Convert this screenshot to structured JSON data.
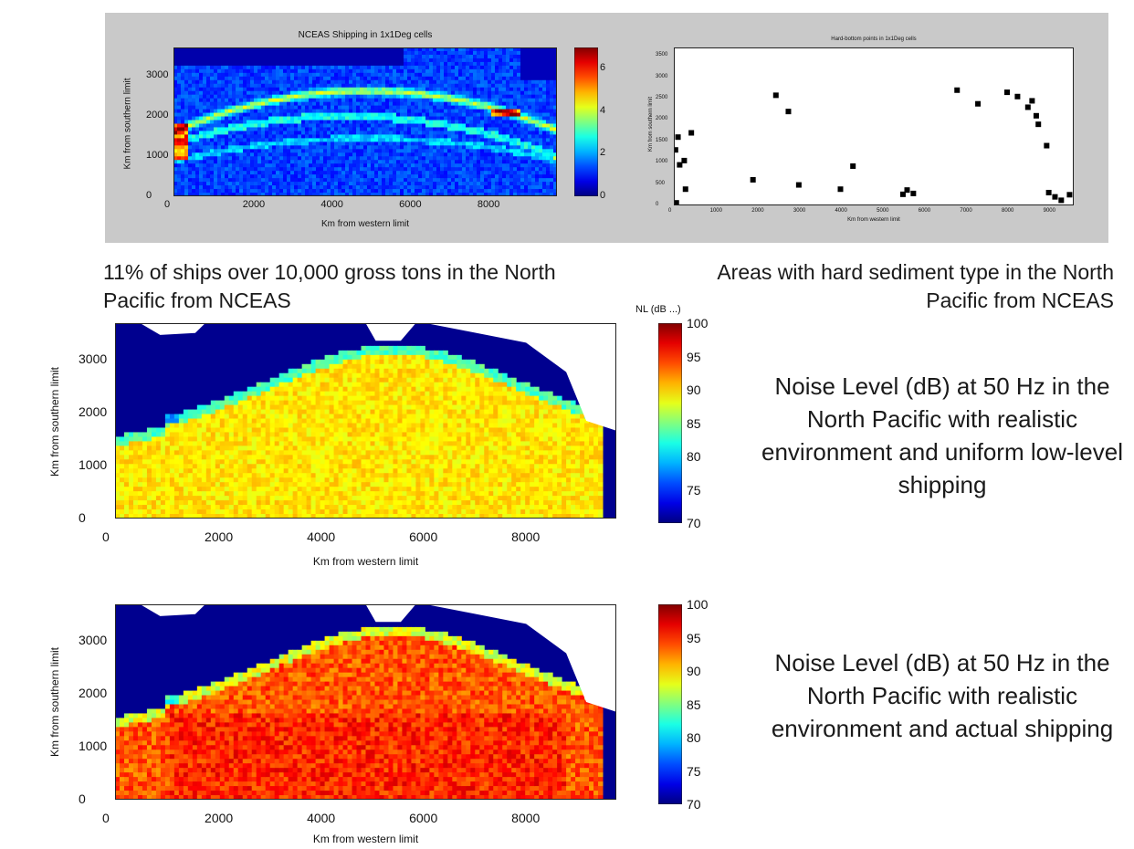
{
  "captions": {
    "shipping": "11% of ships over 10,000 gross tons in the North Pacific from NCEAS",
    "sediment": "Areas with hard sediment type in the North Pacific from NCEAS",
    "uniform": "Noise Level (dB) at 50 Hz in the North Pacific with realistic environment and uniform low-level shipping",
    "actual": "Noise Level (dB) at 50 Hz in the North Pacific with realistic environment and actual shipping"
  },
  "colors": {
    "ocean_low": "#00008f",
    "land": "#ffffff",
    "panel_bg": "#c9c9c9"
  },
  "chart_data": [
    {
      "type": "heatmap",
      "title": "NCEAS Shipping in 1x1Deg cells",
      "xlabel": "Km from western limit",
      "ylabel": "Km from southern limit",
      "xlim": [
        0,
        9800
      ],
      "ylim": [
        0,
        3700
      ],
      "xticks": [
        "0",
        "2000",
        "4000",
        "6000",
        "8000"
      ],
      "yticks": [
        "0",
        "1000",
        "2000",
        "3000"
      ],
      "colorbar": {
        "range": [
          0,
          7
        ],
        "ticks": [
          "0",
          "2",
          "4",
          "6"
        ],
        "colormap": "jet"
      }
    },
    {
      "type": "heatmap",
      "title": "Hard-bottom points in 1x1Deg cells",
      "xlabel": "Km from western limit",
      "ylabel": "Km from southern limit",
      "xlim": [
        0,
        9600
      ],
      "ylim": [
        0,
        3700
      ],
      "xticks": [
        "0",
        "1000",
        "2000",
        "3000",
        "4000",
        "5000",
        "6000",
        "7000",
        "8000",
        "9000"
      ],
      "yticks": [
        "0",
        "500",
        "1000",
        "1500",
        "2000",
        "2500",
        "3000",
        "3500"
      ],
      "points": [
        {
          "x": 60,
          "y": 60
        },
        {
          "x": 40,
          "y": 1300
        },
        {
          "x": 100,
          "y": 1600
        },
        {
          "x": 140,
          "y": 950
        },
        {
          "x": 250,
          "y": 1050
        },
        {
          "x": 280,
          "y": 380
        },
        {
          "x": 420,
          "y": 1700
        },
        {
          "x": 1900,
          "y": 600
        },
        {
          "x": 2450,
          "y": 2580
        },
        {
          "x": 2750,
          "y": 2200
        },
        {
          "x": 3000,
          "y": 480
        },
        {
          "x": 4000,
          "y": 380
        },
        {
          "x": 4300,
          "y": 920
        },
        {
          "x": 5500,
          "y": 260
        },
        {
          "x": 5600,
          "y": 360
        },
        {
          "x": 5750,
          "y": 280
        },
        {
          "x": 6800,
          "y": 2700
        },
        {
          "x": 7300,
          "y": 2380
        },
        {
          "x": 8000,
          "y": 2650
        },
        {
          "x": 8250,
          "y": 2550
        },
        {
          "x": 8500,
          "y": 2300
        },
        {
          "x": 8600,
          "y": 2450
        },
        {
          "x": 8700,
          "y": 2100
        },
        {
          "x": 8750,
          "y": 1900
        },
        {
          "x": 8950,
          "y": 1400
        },
        {
          "x": 9000,
          "y": 300
        },
        {
          "x": 9150,
          "y": 200
        },
        {
          "x": 9300,
          "y": 120
        },
        {
          "x": 9500,
          "y": 250
        }
      ]
    },
    {
      "type": "heatmap",
      "xlabel": "Km from western limit",
      "ylabel": "Km from southern limit",
      "xlim": [
        0,
        9800
      ],
      "ylim": [
        0,
        3700
      ],
      "xticks": [
        "0",
        "2000",
        "4000",
        "6000",
        "8000"
      ],
      "yticks": [
        "0",
        "1000",
        "2000",
        "3000"
      ],
      "colorbar": {
        "label": "NL (dB ...)",
        "range": [
          70,
          100
        ],
        "ticks": [
          "70",
          "75",
          "80",
          "85",
          "90",
          "95",
          "100"
        ],
        "colormap": "jet"
      },
      "level_range_db": [
        84,
        91
      ]
    },
    {
      "type": "heatmap",
      "xlabel": "Km from western limit",
      "ylabel": "Km from southern limit",
      "xlim": [
        0,
        9800
      ],
      "ylim": [
        0,
        3700
      ],
      "xticks": [
        "0",
        "2000",
        "4000",
        "6000",
        "8000"
      ],
      "yticks": [
        "0",
        "1000",
        "2000",
        "3000"
      ],
      "colorbar": {
        "range": [
          70,
          100
        ],
        "ticks": [
          "70",
          "75",
          "80",
          "85",
          "90",
          "95",
          "100"
        ],
        "colormap": "jet"
      },
      "level_range_db": [
        86,
        96
      ]
    }
  ]
}
